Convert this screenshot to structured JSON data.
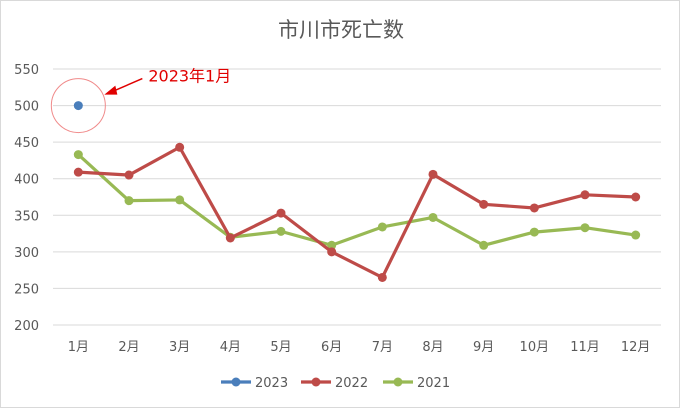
{
  "chart_data": {
    "type": "line",
    "title": "市川市死亡数",
    "xlabel": "",
    "ylabel": "",
    "categories": [
      "1月",
      "2月",
      "3月",
      "4月",
      "5月",
      "6月",
      "7月",
      "8月",
      "9月",
      "10月",
      "11月",
      "12月"
    ],
    "ylim": [
      200,
      550
    ],
    "yticks": [
      200,
      250,
      300,
      350,
      400,
      450,
      500,
      550
    ],
    "grid": true,
    "legend_position": "bottom",
    "series": [
      {
        "name": "2023",
        "color": "#4a7ebb",
        "values": [
          500,
          null,
          null,
          null,
          null,
          null,
          null,
          null,
          null,
          null,
          null,
          null
        ]
      },
      {
        "name": "2022",
        "color": "#be4b48",
        "values": [
          409,
          405,
          443,
          319,
          353,
          300,
          265,
          406,
          365,
          360,
          378,
          375
        ]
      },
      {
        "name": "2021",
        "color": "#98b954",
        "values": [
          433,
          370,
          371,
          320,
          328,
          309,
          334,
          347,
          309,
          327,
          333,
          323
        ]
      }
    ],
    "annotation": {
      "text": "2023年1月",
      "color": "#e00000",
      "target_category": "1月",
      "target_value": 500
    }
  }
}
